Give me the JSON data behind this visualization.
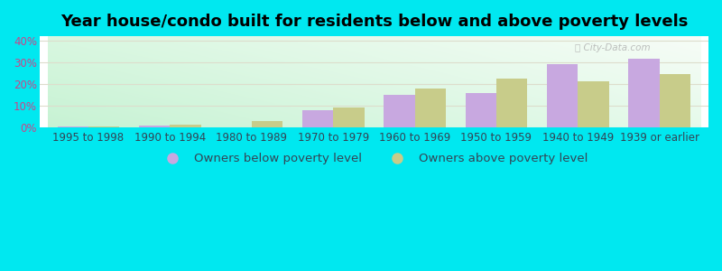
{
  "title": "Year house/condo built for residents below and above poverty levels",
  "categories": [
    "1995 to 1998",
    "1990 to 1994",
    "1980 to 1989",
    "1970 to 1979",
    "1960 to 1969",
    "1950 to 1959",
    "1940 to 1949",
    "1939 or earlier"
  ],
  "below_poverty": [
    0.5,
    1.2,
    0.0,
    8.0,
    15.0,
    16.0,
    29.0,
    31.5
  ],
  "above_poverty": [
    0.8,
    1.5,
    3.0,
    9.2,
    18.0,
    22.5,
    21.5,
    24.5
  ],
  "below_color": "#c8a8e0",
  "above_color": "#c8cc8a",
  "ylim": [
    0,
    42
  ],
  "yticks": [
    0,
    10,
    20,
    30,
    40
  ],
  "ytick_labels": [
    "0%",
    "10%",
    "20%",
    "30%",
    "40%"
  ],
  "grid_color": "#ddddcc",
  "bar_width": 0.38,
  "legend_below": "Owners below poverty level",
  "legend_above": "Owners above poverty level",
  "outer_bg": "#00e8f0",
  "title_fontsize": 13,
  "axis_label_fontsize": 8.5,
  "legend_fontsize": 9.5,
  "ytick_color": "#cc4488",
  "xtick_color": "#334455",
  "legend_color": "#334455"
}
